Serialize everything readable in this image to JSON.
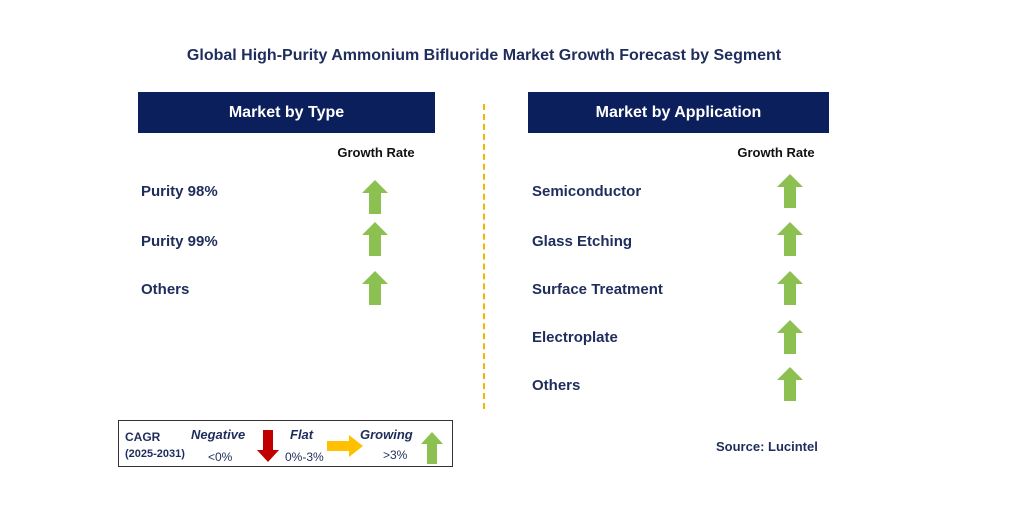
{
  "title": "Global High-Purity Ammonium Bifluoride Market Growth Forecast by Segment",
  "colors": {
    "header_bg": "#0b1f5c",
    "growing": "#8cc152",
    "negative": "#c00000",
    "flat": "#ffc000",
    "divider": "#f5b400"
  },
  "left_panel": {
    "header": "Market by Type",
    "growth_rate_label": "Growth Rate",
    "rows": [
      {
        "label": "Purity 98%",
        "trend": "growing"
      },
      {
        "label": "Purity 99%",
        "trend": "growing"
      },
      {
        "label": "Others",
        "trend": "growing"
      }
    ]
  },
  "right_panel": {
    "header": "Market by Application",
    "growth_rate_label": "Growth Rate",
    "rows": [
      {
        "label": "Semiconductor",
        "trend": "growing"
      },
      {
        "label": "Glass Etching",
        "trend": "growing"
      },
      {
        "label": "Surface Treatment",
        "trend": "growing"
      },
      {
        "label": "Electroplate",
        "trend": "growing"
      },
      {
        "label": "Others",
        "trend": "growing"
      }
    ]
  },
  "legend": {
    "cagr_label": "CAGR",
    "period": "(2025-2031)",
    "negative_label": "Negative",
    "negative_range": "<0%",
    "flat_label": "Flat",
    "flat_range": "0%-3%",
    "growing_label": "Growing",
    "growing_range": ">3%",
    "icons": {
      "negative": "arrow-down-icon",
      "flat": "arrow-right-icon",
      "growing": "arrow-up-icon"
    }
  },
  "source": "Source: Lucintel"
}
